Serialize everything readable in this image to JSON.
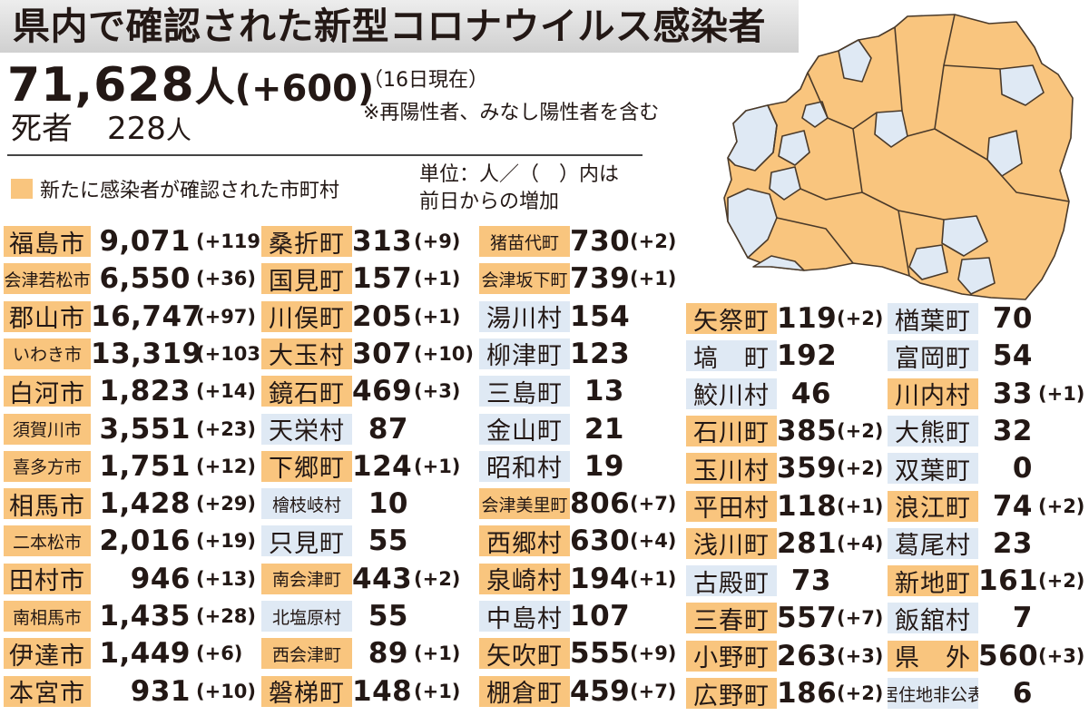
{
  "header": {
    "title": "県内で確認された新型コロナウイルス感染者",
    "total": "71,628",
    "total_unit": "人",
    "total_diff": "(+600)",
    "as_of": "（16日現在）",
    "note": "※再陽性者、みなし陽性者を含む",
    "deaths_label": "死者",
    "deaths_value": "228",
    "deaths_unit": "人"
  },
  "legend": {
    "label": "新たに感染者が確認された市町村",
    "unit_line1": "単位：人／（　）内は",
    "unit_line2": "前日からの増加"
  },
  "colors": {
    "new_cases": "#f9c57e",
    "no_new_cases": "#dfe9f4"
  },
  "columns": [
    [
      {
        "name": "福島市",
        "count": "9,071",
        "diff": "(+119)",
        "new": true
      },
      {
        "name": "会津若松市",
        "count": "6,550",
        "diff": "(+36)",
        "new": true
      },
      {
        "name": "郡山市",
        "count": "16,747",
        "diff": "(+97)",
        "new": true
      },
      {
        "name": "いわき市",
        "count": "13,319",
        "diff": "(+103)",
        "new": true
      },
      {
        "name": "白河市",
        "count": "1,823",
        "diff": "(+14)",
        "new": true
      },
      {
        "name": "須賀川市",
        "count": "3,551",
        "diff": "(+23)",
        "new": true
      },
      {
        "name": "喜多方市",
        "count": "1,751",
        "diff": "(+12)",
        "new": true
      },
      {
        "name": "相馬市",
        "count": "1,428",
        "diff": "(+29)",
        "new": true
      },
      {
        "name": "二本松市",
        "count": "2,016",
        "diff": "(+19)",
        "new": true
      },
      {
        "name": "田村市",
        "count": "946",
        "diff": "(+13)",
        "new": true
      },
      {
        "name": "南相馬市",
        "count": "1,435",
        "diff": "(+28)",
        "new": true
      },
      {
        "name": "伊達市",
        "count": "1,449",
        "diff": "(+6)",
        "new": true
      },
      {
        "name": "本宮市",
        "count": "931",
        "diff": "(+10)",
        "new": true
      }
    ],
    [
      {
        "name": "桑折町",
        "count": "313",
        "diff": "(+9)",
        "new": true
      },
      {
        "name": "国見町",
        "count": "157",
        "diff": "(+1)",
        "new": true
      },
      {
        "name": "川俣町",
        "count": "205",
        "diff": "(+1)",
        "new": true
      },
      {
        "name": "大玉村",
        "count": "307",
        "diff": "(+10)",
        "new": true
      },
      {
        "name": "鏡石町",
        "count": "469",
        "diff": "(+3)",
        "new": true
      },
      {
        "name": "天栄村",
        "count": "87",
        "diff": "",
        "new": false
      },
      {
        "name": "下郷町",
        "count": "124",
        "diff": "(+1)",
        "new": true
      },
      {
        "name": "檜枝岐村",
        "count": "10",
        "diff": "",
        "new": false
      },
      {
        "name": "只見町",
        "count": "55",
        "diff": "",
        "new": false
      },
      {
        "name": "南会津町",
        "count": "443",
        "diff": "(+2)",
        "new": true
      },
      {
        "name": "北塩原村",
        "count": "55",
        "diff": "",
        "new": false
      },
      {
        "name": "西会津町",
        "count": "89",
        "diff": "(+1)",
        "new": true
      },
      {
        "name": "磐梯町",
        "count": "148",
        "diff": "(+1)",
        "new": true
      }
    ],
    [
      {
        "name": "猪苗代町",
        "count": "730",
        "diff": "(+2)",
        "new": true
      },
      {
        "name": "会津坂下町",
        "count": "739",
        "diff": "(+1)",
        "new": true
      },
      {
        "name": "湯川村",
        "count": "154",
        "diff": "",
        "new": false
      },
      {
        "name": "柳津町",
        "count": "123",
        "diff": "",
        "new": false
      },
      {
        "name": "三島町",
        "count": "13",
        "diff": "",
        "new": false
      },
      {
        "name": "金山町",
        "count": "21",
        "diff": "",
        "new": false
      },
      {
        "name": "昭和村",
        "count": "19",
        "diff": "",
        "new": false
      },
      {
        "name": "会津美里町",
        "count": "806",
        "diff": "(+7)",
        "new": true
      },
      {
        "name": "西郷村",
        "count": "630",
        "diff": "(+4)",
        "new": true
      },
      {
        "name": "泉崎村",
        "count": "194",
        "diff": "(+1)",
        "new": true
      },
      {
        "name": "中島村",
        "count": "107",
        "diff": "",
        "new": false
      },
      {
        "name": "矢吹町",
        "count": "555",
        "diff": "(+9)",
        "new": true
      },
      {
        "name": "棚倉町",
        "count": "459",
        "diff": "(+7)",
        "new": true
      }
    ],
    [
      {
        "name": "矢祭町",
        "count": "119",
        "diff": "(+2)",
        "new": true
      },
      {
        "name": "塙　町",
        "count": "192",
        "diff": "",
        "new": false
      },
      {
        "name": "鮫川村",
        "count": "46",
        "diff": "",
        "new": false
      },
      {
        "name": "石川町",
        "count": "385",
        "diff": "(+2)",
        "new": true
      },
      {
        "name": "玉川村",
        "count": "359",
        "diff": "(+2)",
        "new": true
      },
      {
        "name": "平田村",
        "count": "118",
        "diff": "(+1)",
        "new": true
      },
      {
        "name": "浅川町",
        "count": "281",
        "diff": "(+4)",
        "new": true
      },
      {
        "name": "古殿町",
        "count": "73",
        "diff": "",
        "new": false
      },
      {
        "name": "三春町",
        "count": "557",
        "diff": "(+7)",
        "new": true
      },
      {
        "name": "小野町",
        "count": "263",
        "diff": "(+3)",
        "new": true
      },
      {
        "name": "広野町",
        "count": "186",
        "diff": "(+2)",
        "new": true
      }
    ],
    [
      {
        "name": "楢葉町",
        "count": "70",
        "diff": "",
        "new": false
      },
      {
        "name": "富岡町",
        "count": "54",
        "diff": "",
        "new": false
      },
      {
        "name": "川内村",
        "count": "33",
        "diff": "(+1)",
        "new": true
      },
      {
        "name": "大熊町",
        "count": "32",
        "diff": "",
        "new": false
      },
      {
        "name": "双葉町",
        "count": "0",
        "diff": "",
        "new": false
      },
      {
        "name": "浪江町",
        "count": "74",
        "diff": "(+2)",
        "new": true
      },
      {
        "name": "葛尾村",
        "count": "23",
        "diff": "",
        "new": false
      },
      {
        "name": "新地町",
        "count": "161",
        "diff": "(+2)",
        "new": true
      },
      {
        "name": "飯舘村",
        "count": "7",
        "diff": "",
        "new": false
      },
      {
        "name": "県　外",
        "count": "560",
        "diff": "(+3)",
        "new": true
      },
      {
        "name": "居住地非公表",
        "count": "6",
        "diff": "",
        "new": false
      }
    ]
  ]
}
